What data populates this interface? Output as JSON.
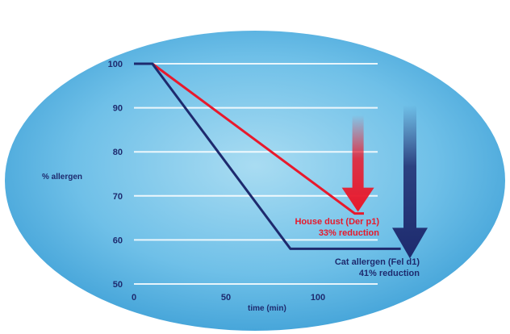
{
  "chart_data": {
    "type": "line",
    "xlabel": "time (min)",
    "ylabel": "% allergen",
    "xlim": [
      0,
      130
    ],
    "ylim": [
      50,
      100
    ],
    "x_ticks": [
      "0",
      "50",
      "100"
    ],
    "y_ticks": [
      "100",
      "90",
      "80",
      "70",
      "60",
      "50"
    ],
    "grid": true,
    "series": [
      {
        "name": "House dust (Der p1)",
        "color": "#e8192c",
        "points": [
          [
            0,
            100
          ],
          [
            10,
            100
          ],
          [
            120,
            66
          ],
          [
            125,
            66
          ]
        ]
      },
      {
        "name": "Cat allergen (Fel d1)",
        "color": "#1e2a6e",
        "points": [
          [
            0,
            100
          ],
          [
            10,
            100
          ],
          [
            85,
            58
          ],
          [
            145,
            58
          ]
        ]
      }
    ],
    "annotations": [
      {
        "series": 0,
        "lines": [
          "House dust (Der p1)",
          "33% reduction"
        ],
        "color": "#e8192c"
      },
      {
        "series": 1,
        "lines": [
          "Cat allergen (Fel d1)",
          "41% reduction"
        ],
        "color": "#1e2a6e"
      }
    ]
  }
}
